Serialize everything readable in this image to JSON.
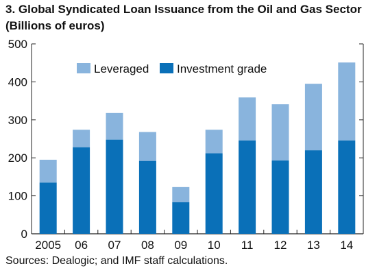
{
  "chart_data": {
    "type": "bar",
    "stacked": true,
    "title_line1": "3. Global Syndicated Loan Issuance from the Oil and Gas Sector",
    "title_line2": "(Billions of euros)",
    "categories": [
      "2005",
      "06",
      "07",
      "08",
      "09",
      "10",
      "11",
      "12",
      "13",
      "14"
    ],
    "series": [
      {
        "name": "Investment grade",
        "color": "#0a70b8",
        "values": [
          135,
          228,
          248,
          192,
          83,
          212,
          246,
          193,
          220,
          246
        ]
      },
      {
        "name": "Leveraged",
        "color": "#89b4dd",
        "values": [
          60,
          46,
          70,
          76,
          40,
          62,
          113,
          148,
          175,
          205
        ]
      }
    ],
    "legend_order": [
      "Leveraged",
      "Investment grade"
    ],
    "legend_position": "top-left",
    "ylim": [
      0,
      500
    ],
    "yticks": [
      0,
      100,
      200,
      300,
      400,
      500
    ],
    "xlabel": "",
    "ylabel": "",
    "grid": false,
    "source": "Sources: Dealogic; and IMF staff calculations."
  }
}
